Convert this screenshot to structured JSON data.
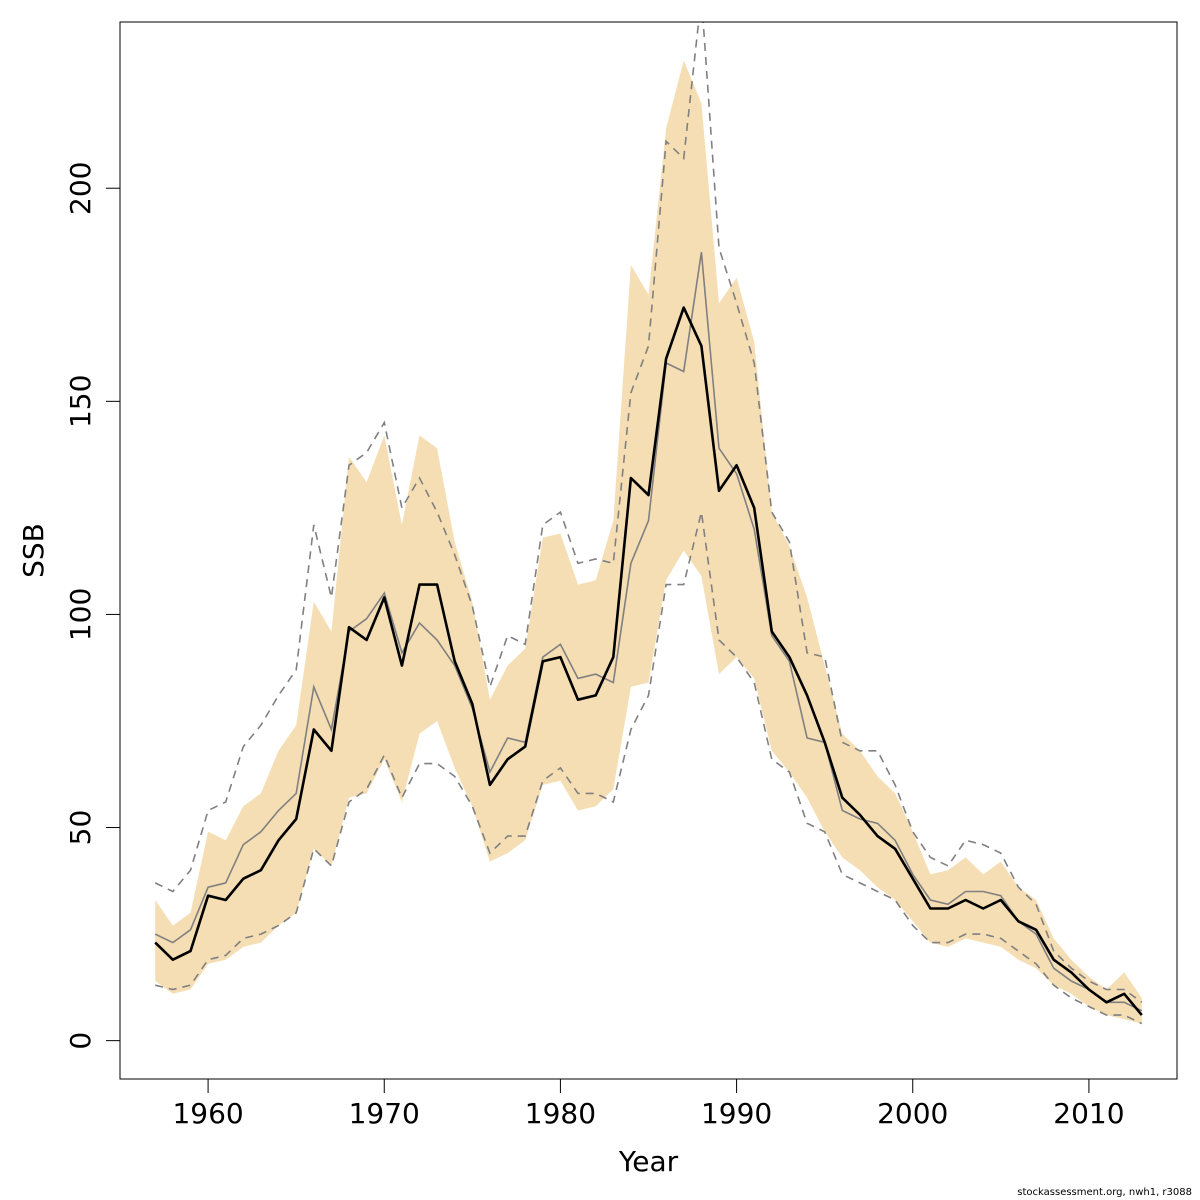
{
  "chart_data": {
    "type": "line",
    "xlabel": "Year",
    "ylabel": "SSB",
    "xlim": [
      1955,
      2015
    ],
    "ylim": [
      -9,
      239
    ],
    "x_ticks": [
      1960,
      1970,
      1980,
      1990,
      2000,
      2010
    ],
    "y_ticks": [
      0,
      50,
      100,
      150,
      200
    ],
    "colors": {
      "band": "#f5deb3",
      "estimate": "#000000",
      "alt_line": "#808080"
    },
    "x": [
      1957,
      1958,
      1959,
      1960,
      1961,
      1962,
      1963,
      1964,
      1965,
      1966,
      1967,
      1968,
      1969,
      1970,
      1971,
      1972,
      1973,
      1974,
      1975,
      1976,
      1977,
      1978,
      1979,
      1980,
      1981,
      1982,
      1983,
      1984,
      1985,
      1986,
      1987,
      1988,
      1989,
      1990,
      1991,
      1992,
      1993,
      1994,
      1995,
      1996,
      1997,
      1998,
      1999,
      2000,
      2001,
      2002,
      2003,
      2004,
      2005,
      2006,
      2007,
      2008,
      2009,
      2010,
      2011,
      2012,
      2013
    ],
    "series": [
      {
        "style": "confidence-band",
        "upper": [
          33,
          27,
          30,
          49,
          47,
          55,
          58,
          68,
          74,
          103,
          96,
          137,
          131,
          142,
          121,
          142,
          139,
          117,
          103,
          80,
          88,
          92,
          118,
          119,
          107,
          108,
          122,
          182,
          175,
          214,
          230,
          220,
          173,
          179,
          164,
          124,
          116,
          104,
          88,
          72,
          68,
          62,
          58,
          49,
          39,
          40,
          43,
          39,
          42,
          36,
          33,
          24,
          19,
          15,
          12,
          16,
          10
        ],
        "lower": [
          14,
          11,
          12,
          18,
          19,
          22,
          23,
          27,
          30,
          45,
          41,
          57,
          58,
          66,
          56,
          72,
          75,
          64,
          55,
          42,
          44,
          47,
          60,
          61,
          54,
          55,
          59,
          83,
          84,
          108,
          115,
          109,
          86,
          90,
          85,
          68,
          63,
          57,
          49,
          43,
          40,
          36,
          33,
          28,
          23,
          22,
          24,
          23,
          22,
          19,
          17,
          13,
          11,
          8,
          6,
          5,
          4
        ]
      },
      {
        "style": "dashed",
        "color": "#808080",
        "values": [
          37,
          35,
          40,
          54,
          56,
          69,
          74,
          81,
          87,
          121,
          104,
          135,
          138,
          145,
          125,
          132,
          124,
          114,
          102,
          83,
          95,
          93,
          121,
          124,
          112,
          113,
          112,
          152,
          163,
          211,
          207,
          245,
          186,
          173,
          159,
          124,
          117,
          91,
          90,
          70,
          68,
          68,
          60,
          49,
          43,
          41,
          47,
          46,
          44,
          36,
          32,
          21,
          17,
          14,
          12,
          12,
          9
        ],
        "lower": [
          13,
          12,
          13,
          19,
          20,
          24,
          25,
          27,
          30,
          45,
          41,
          56,
          59,
          67,
          57,
          65,
          65,
          62,
          55,
          44,
          48,
          48,
          61,
          64,
          58,
          58,
          56,
          73,
          81,
          107,
          107,
          124,
          94,
          90,
          84,
          66,
          63,
          51,
          49,
          39,
          37,
          35,
          33,
          27,
          23,
          23,
          25,
          25,
          24,
          21,
          18,
          13,
          10,
          8,
          6,
          6,
          4
        ]
      },
      {
        "style": "thin",
        "color": "#808080",
        "values": [
          25,
          23,
          26,
          36,
          37,
          46,
          49,
          54,
          58,
          83,
          73,
          96,
          99,
          105,
          91,
          98,
          94,
          88,
          78,
          63,
          71,
          70,
          90,
          93,
          85,
          86,
          84,
          112,
          122,
          159,
          157,
          185,
          139,
          133,
          120,
          95,
          89,
          71,
          70,
          54,
          52,
          51,
          47,
          39,
          33,
          32,
          35,
          35,
          34,
          28,
          25,
          17,
          14,
          12,
          9,
          9,
          7
        ]
      },
      {
        "style": "thick",
        "color": "#000000",
        "values": [
          23,
          19,
          21,
          34,
          33,
          38,
          40,
          47,
          52,
          73,
          68,
          97,
          94,
          104,
          88,
          107,
          107,
          89,
          79,
          60,
          66,
          69,
          89,
          90,
          80,
          81,
          90,
          132,
          128,
          160,
          172,
          163,
          129,
          135,
          125,
          96,
          90,
          81,
          70,
          57,
          53,
          48,
          45,
          38,
          31,
          31,
          33,
          31,
          33,
          28,
          26,
          19,
          16,
          12,
          9,
          11,
          6
        ]
      }
    ]
  },
  "credit": "stockassessment.org, nwh1, r3088"
}
